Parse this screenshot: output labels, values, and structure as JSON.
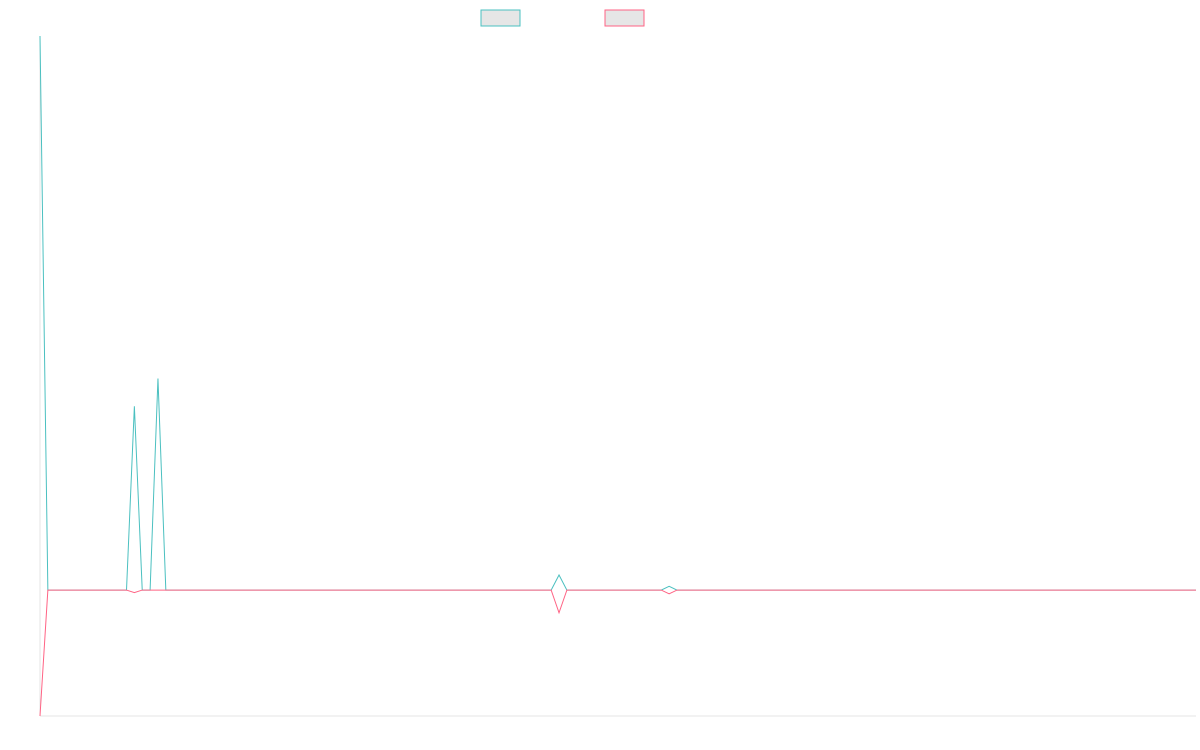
{
  "colors": {
    "series_a": "#4bc0c0",
    "series_b": "#ff6384",
    "legend_fill": "#e6e6e6",
    "axis": "#e5e5e5"
  },
  "chart_data": {
    "type": "line",
    "title": "",
    "xlabel": "",
    "ylabel": "",
    "legend": "top-center",
    "grid": false,
    "x_count": 148,
    "ylim": [
      -10,
      44
    ],
    "series": [
      {
        "color": "#4bc0c0",
        "points": [
          [
            0,
            44
          ],
          [
            1,
            0
          ],
          [
            11,
            0
          ],
          [
            12,
            14.6
          ],
          [
            13,
            0
          ],
          [
            14,
            0
          ],
          [
            15,
            16.8
          ],
          [
            16,
            0
          ],
          [
            65,
            0
          ],
          [
            66,
            1.2
          ],
          [
            67,
            0
          ],
          [
            79,
            0
          ],
          [
            80,
            0.3
          ],
          [
            81,
            0
          ],
          [
            147,
            0
          ]
        ]
      },
      {
        "color": "#ff6384",
        "points": [
          [
            0,
            -10
          ],
          [
            1,
            0
          ],
          [
            11,
            0
          ],
          [
            12,
            -0.2
          ],
          [
            13,
            0
          ],
          [
            14,
            0
          ],
          [
            15,
            0
          ],
          [
            16,
            0
          ],
          [
            65,
            0
          ],
          [
            66,
            -1.8
          ],
          [
            67,
            0
          ],
          [
            79,
            0
          ],
          [
            80,
            -0.3
          ],
          [
            81,
            0
          ],
          [
            147,
            0
          ]
        ]
      }
    ]
  }
}
